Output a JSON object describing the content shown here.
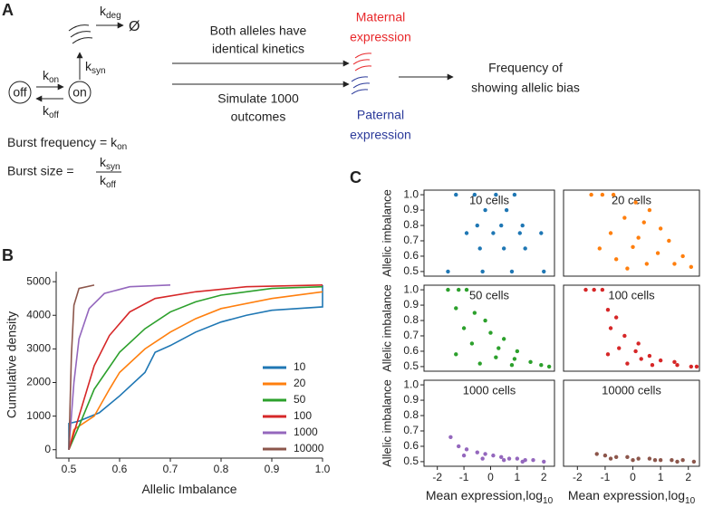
{
  "panel_labels": {
    "a": "A",
    "b": "B",
    "c": "C"
  },
  "diagram": {
    "state_off": "off",
    "state_on": "on",
    "k_on": {
      "base": "k",
      "sub": "on"
    },
    "k_off": {
      "base": "k",
      "sub": "off"
    },
    "k_syn": {
      "base": "k",
      "sub": "syn"
    },
    "k_deg": {
      "base": "k",
      "sub": "deg"
    },
    "degraded": "Ø",
    "burst_frequency": "Burst frequency =",
    "burst_size": "Burst size =",
    "arrow1_label": [
      "Both alleles have",
      "identical kinetics"
    ],
    "arrow2_label": [
      "Simulate 1000",
      "outcomes"
    ],
    "maternal": [
      "Maternal",
      "expression"
    ],
    "paternal": [
      "Paternal",
      "expression"
    ],
    "result": [
      "Frequency of",
      "showing allelic bias"
    ]
  },
  "chart_data": [
    {
      "type": "line",
      "xlabel": "Allelic Imbalance",
      "ylabel": "Cumulative density",
      "xlim": [
        0.475,
        1.0
      ],
      "ylim": [
        -250,
        5300
      ],
      "xticks": [
        0.5,
        0.6,
        0.7,
        0.8,
        0.9,
        {
          "value": 1,
          "label": "1.0"
        }
      ],
      "yticks": [
        0,
        1000,
        2000,
        3000,
        4000,
        5000
      ],
      "legend": "lower right",
      "series": [
        {
          "name": "10",
          "color": "#1f77b4",
          "x": [
            0.5,
            0.5,
            0.52,
            0.56,
            0.6,
            0.65,
            0.67,
            0.7,
            0.75,
            0.8,
            0.85,
            0.9,
            1.0,
            1.0
          ],
          "values": [
            0,
            780,
            850,
            1100,
            1600,
            2300,
            2900,
            3100,
            3500,
            3800,
            4000,
            4150,
            4250,
            4900
          ]
        },
        {
          "name": "20",
          "color": "#ff7f0e",
          "x": [
            0.5,
            0.51,
            0.55,
            0.58,
            0.6,
            0.65,
            0.7,
            0.75,
            0.8,
            0.9,
            1.0
          ],
          "values": [
            0,
            600,
            1000,
            1800,
            2300,
            3000,
            3500,
            3900,
            4200,
            4500,
            4700
          ]
        },
        {
          "name": "50",
          "color": "#2ca02c",
          "x": [
            0.5,
            0.52,
            0.55,
            0.6,
            0.65,
            0.7,
            0.75,
            0.8,
            0.9,
            1.0
          ],
          "values": [
            0,
            700,
            1800,
            2900,
            3600,
            4100,
            4400,
            4600,
            4800,
            4850
          ]
        },
        {
          "name": "100",
          "color": "#d62728",
          "x": [
            0.5,
            0.52,
            0.55,
            0.58,
            0.62,
            0.67,
            0.75,
            0.85,
            1.0
          ],
          "values": [
            0,
            1000,
            2500,
            3400,
            4100,
            4500,
            4700,
            4850,
            4900
          ]
        },
        {
          "name": "1000",
          "color": "#9467bd",
          "x": [
            0.5,
            0.51,
            0.52,
            0.54,
            0.57,
            0.62,
            0.7
          ],
          "values": [
            0,
            2000,
            3300,
            4200,
            4650,
            4850,
            4900
          ]
        },
        {
          "name": "10000",
          "color": "#8c564b",
          "x": [
            0.5,
            0.505,
            0.51,
            0.52,
            0.55
          ],
          "values": [
            0,
            2800,
            4300,
            4800,
            4900
          ]
        }
      ]
    },
    {
      "type": "scatter",
      "title": "10 cells",
      "ylabel": "Allelic imbalance",
      "xlim": [
        -2.5,
        2.4
      ],
      "ylim": [
        0.47,
        1.03
      ],
      "yticks": [
        0.5,
        0.6,
        0.7,
        0.8,
        0.9,
        {
          "value": 1,
          "label": "1.0"
        }
      ],
      "color": "#1f77b4",
      "x": [
        -1.3,
        -0.6,
        0.2,
        0.9,
        -0.2,
        0.6,
        -0.5,
        0.4,
        1.2,
        -0.9,
        0.1,
        1.1,
        1.9,
        -0.4,
        0.5,
        1.3,
        -1.6,
        -0.3,
        0.8,
        2.0
      ],
      "values": [
        1,
        1,
        1,
        1,
        0.9,
        0.9,
        0.8,
        0.8,
        0.8,
        0.75,
        0.75,
        0.75,
        0.75,
        0.65,
        0.65,
        0.65,
        0.5,
        0.5,
        0.5,
        0.5
      ]
    },
    {
      "type": "scatter",
      "title": "20 cells",
      "xlim": [
        -2.5,
        2.4
      ],
      "ylim": [
        0.47,
        1.03
      ],
      "color": "#ff7f0e",
      "x": [
        -1.5,
        -1.1,
        -0.7,
        0.1,
        0.6,
        -0.3,
        0.4,
        1.0,
        -0.8,
        0.2,
        1.3,
        -1.2,
        0,
        0.9,
        1.8,
        -0.6,
        0.5,
        1.5,
        2.1,
        -0.2
      ],
      "values": [
        1,
        1,
        1,
        0.95,
        0.9,
        0.85,
        0.82,
        0.78,
        0.75,
        0.72,
        0.7,
        0.65,
        0.66,
        0.62,
        0.6,
        0.58,
        0.55,
        0.55,
        0.53,
        0.52
      ]
    },
    {
      "type": "scatter",
      "title": "50 cells",
      "ylabel": "Allelic imbalance",
      "xlim": [
        -2.5,
        2.4
      ],
      "ylim": [
        0.47,
        1.03
      ],
      "yticks": [
        0.5,
        0.6,
        0.7,
        0.8,
        0.9,
        {
          "value": 1,
          "label": "1.0"
        }
      ],
      "color": "#2ca02c",
      "x": [
        -1.6,
        -1.2,
        -0.9,
        -1.3,
        -0.6,
        -0.2,
        -1.0,
        0,
        0.5,
        -0.7,
        0.3,
        1.0,
        -1.3,
        0.2,
        0.9,
        1.5,
        -0.4,
        0.8,
        1.9,
        2.2
      ],
      "values": [
        1,
        1,
        1,
        0.88,
        0.85,
        0.8,
        0.75,
        0.72,
        0.68,
        0.65,
        0.62,
        0.6,
        0.58,
        0.56,
        0.55,
        0.53,
        0.52,
        0.51,
        0.51,
        0.5
      ]
    },
    {
      "type": "scatter",
      "title": "100 cells",
      "xlim": [
        -2.5,
        2.4
      ],
      "ylim": [
        0.47,
        1.03
      ],
      "color": "#d62728",
      "x": [
        -1.7,
        -1.4,
        -1.1,
        -0.9,
        -0.6,
        -0.8,
        -0.3,
        0.2,
        -0.5,
        0.1,
        0.6,
        -0.9,
        0.3,
        1.0,
        1.5,
        -0.2,
        0.7,
        1.6,
        2.1,
        2.3
      ],
      "values": [
        1,
        1,
        1,
        0.87,
        0.82,
        0.75,
        0.7,
        0.65,
        0.62,
        0.6,
        0.57,
        0.58,
        0.55,
        0.54,
        0.53,
        0.52,
        0.51,
        0.51,
        0.5,
        0.5
      ]
    },
    {
      "type": "scatter",
      "title": "1000 cells",
      "ylabel": "Allelic imbalance",
      "xlabel": "Mean expression,log",
      "xlabel_sub": "10",
      "xlim": [
        -2.5,
        2.4
      ],
      "ylim": [
        0.47,
        1.03
      ],
      "xticks": [
        -2,
        -1,
        0,
        1,
        2
      ],
      "yticks": [
        0.5,
        0.6,
        0.7,
        0.8,
        0.9,
        {
          "value": 1,
          "label": "1.0"
        }
      ],
      "color": "#9467bd",
      "x": [
        -1.5,
        -1.2,
        -0.9,
        -0.5,
        -0.2,
        0.1,
        0.4,
        0.7,
        1.0,
        1.3,
        1.6,
        2.0,
        -1.0,
        -0.3,
        0.5,
        1.2
      ],
      "values": [
        0.66,
        0.6,
        0.58,
        0.56,
        0.55,
        0.54,
        0.53,
        0.52,
        0.52,
        0.51,
        0.51,
        0.5,
        0.54,
        0.52,
        0.51,
        0.5
      ]
    },
    {
      "type": "scatter",
      "title": "10000 cells",
      "xlabel": "Mean expression,log",
      "xlabel_sub": "10",
      "xlim": [
        -2.5,
        2.4
      ],
      "ylim": [
        0.47,
        1.03
      ],
      "xticks": [
        -2,
        -1,
        0,
        1,
        2
      ],
      "color": "#8c564b",
      "x": [
        -1.3,
        -1.0,
        -0.6,
        -0.2,
        0.2,
        0.6,
        1.0,
        1.4,
        1.8,
        2.2,
        -0.8,
        0,
        0.8,
        1.6
      ],
      "values": [
        0.55,
        0.54,
        0.53,
        0.53,
        0.52,
        0.52,
        0.51,
        0.51,
        0.51,
        0.5,
        0.52,
        0.51,
        0.51,
        0.5
      ]
    }
  ]
}
